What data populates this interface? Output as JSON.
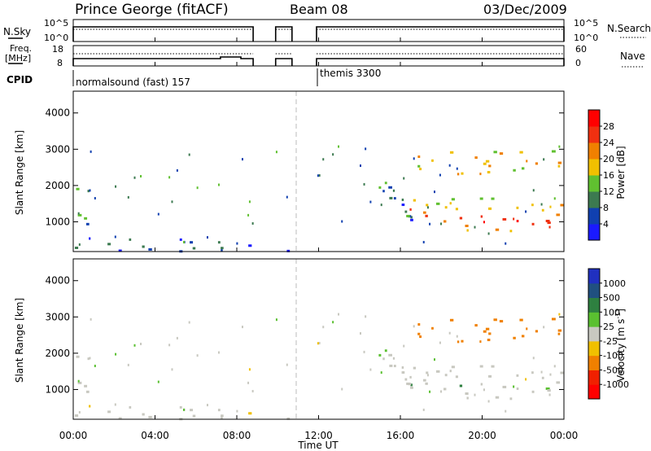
{
  "header": {
    "station": "Prince George (fitACF)",
    "beam": "Beam 08",
    "date": "03/Dec/2009"
  },
  "side_labels": {
    "nsky": "N.Sky",
    "nsearch": "N.Search",
    "freq_line1": "Freq.",
    "freq_line2": "[MHz]",
    "nave": "Nave",
    "cpid": "CPID"
  },
  "noise_axis": {
    "left_ticks": [
      "10^5",
      "10^0"
    ],
    "right_ticks": [
      "10^5",
      "10^0"
    ]
  },
  "freq_axis": {
    "left_ticks": [
      "18",
      "8"
    ],
    "right_ticks": [
      "60",
      "0"
    ]
  },
  "cpid_labels": [
    "normalsound (fast) 157",
    "themis 3300"
  ],
  "x_axis": {
    "title": "Time UT",
    "ticks": [
      "00:00",
      "04:00",
      "08:00",
      "12:00",
      "16:00",
      "20:00",
      "00:00"
    ],
    "range_hours": [
      0,
      24
    ]
  },
  "y_axis": {
    "title": "Slant Range [km]",
    "ticks": [
      "1000",
      "2000",
      "3000",
      "4000"
    ],
    "range_km": [
      180,
      4600
    ]
  },
  "power_colorbar": {
    "title": "Power [dB]",
    "ticks": [
      "4",
      "8",
      "12",
      "16",
      "20",
      "24",
      "28"
    ],
    "colors": [
      "#1a1aff",
      "#1040b0",
      "#3c7a50",
      "#60c030",
      "#f0c000",
      "#f08000",
      "#f03010",
      "#ff0000"
    ]
  },
  "velocity_colorbar": {
    "title_main": "Velocity [m s",
    "title_sup": "-1",
    "title_end": "]",
    "ticks": [
      "1000",
      "500",
      "100",
      "25",
      "-25",
      "-100",
      "-500",
      "-1000"
    ],
    "colors": [
      "#2030c0",
      "#205080",
      "#2e8040",
      "#5ac030",
      "#c8c8c0",
      "#f0c000",
      "#f08000",
      "#f02000",
      "#ff0000"
    ]
  },
  "chart_data": {
    "type": "heatmap",
    "title": "Prince George (fitACF)",
    "xlabel": "Time UT",
    "ylabel": "Slant Range [km]",
    "xlim": [
      0,
      24
    ],
    "ylim": [
      180,
      4600
    ],
    "scan_gaps_hours": [
      [
        8.8,
        9.9
      ],
      [
        10.7,
        11.9
      ]
    ],
    "cpid_switch_hour": 11.9,
    "noon_marker_hour": 10.75,
    "freq_mhz": {
      "before_switch": 10.5,
      "after_switch": 10.8,
      "bump_hours": [
        7.2,
        8.2
      ],
      "bump_value": 11.2
    },
    "scatter_regions": [
      {
        "name": "early-ionospheric",
        "t": [
          0.0,
          0.8
        ],
        "range_km": [
          700,
          2100
        ],
        "power_db": 10,
        "velocity": -25
      },
      {
        "name": "ground-scatter-near",
        "t": [
          0.0,
          8.8
        ],
        "range_km": [
          180,
          600
        ],
        "power_db": 6,
        "velocity": -25
      },
      {
        "name": "noon-patch",
        "t": [
          9.9,
          10.7
        ],
        "range_km": [
          180,
          550
        ],
        "power_db": 6,
        "velocity": -25
      },
      {
        "name": "evening-band-main",
        "t": [
          16.2,
          24.0
        ],
        "range_km": [
          700,
          1700
        ],
        "power_db": 24,
        "velocity": 25
      },
      {
        "name": "evening-band-upper",
        "t": [
          16.8,
          24.0
        ],
        "range_km": [
          2300,
          3000
        ],
        "power_db": 18,
        "velocity": -300
      },
      {
        "name": "evening-slanted",
        "t": [
          14.8,
          16.8
        ],
        "range_km": [
          800,
          2300
        ],
        "power_db": 8,
        "velocity": 25
      }
    ]
  }
}
